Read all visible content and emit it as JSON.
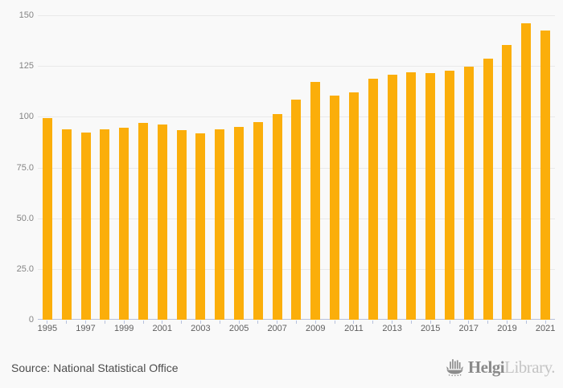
{
  "chart_data": {
    "type": "bar",
    "title": "",
    "categories": [
      "1995",
      "1996",
      "1997",
      "1998",
      "1999",
      "2000",
      "2001",
      "2002",
      "2003",
      "2004",
      "2005",
      "2006",
      "2007",
      "2008",
      "2009",
      "2010",
      "2011",
      "2012",
      "2013",
      "2014",
      "2015",
      "2016",
      "2017",
      "2018",
      "2019",
      "2020",
      "2021"
    ],
    "values": [
      99.4,
      94.0,
      92.4,
      94.0,
      94.8,
      97.1,
      96.2,
      93.5,
      91.9,
      93.7,
      95.2,
      97.3,
      101.2,
      108.4,
      117.2,
      110.5,
      112.1,
      118.6,
      120.9,
      121.8,
      121.4,
      122.7,
      124.5,
      128.5,
      135.4,
      146.1,
      142.5
    ],
    "xlabel": "",
    "ylabel": "",
    "ylim": [
      0,
      150
    ],
    "yticks": [
      {
        "value": 0,
        "label": "0"
      },
      {
        "value": 25,
        "label": "25.0"
      },
      {
        "value": 50,
        "label": "50.0"
      },
      {
        "value": 75,
        "label": "75.0"
      },
      {
        "value": 100,
        "label": "100"
      },
      {
        "value": 125,
        "label": "125"
      },
      {
        "value": 150,
        "label": "150"
      }
    ],
    "xtick_label_every": 2,
    "grid": true,
    "legend_position": "none"
  },
  "footer": {
    "source_text": "Source: National Statistical Office",
    "logo": {
      "icon": "viking-ship-icon",
      "text_bold": "Helgi",
      "text_light": "Library",
      "suffix": "."
    }
  },
  "colors": {
    "background": "#f9f9f9",
    "bar": "#FBAE0A",
    "gridline": "#e9e9e9",
    "axis_line": "#b7c1dc",
    "y_label": "#848484",
    "x_label": "#5e5e5e",
    "source_text": "#4c4c4c",
    "logo_bold": "#8a8a8a",
    "logo_light": "#c4c4c4"
  }
}
